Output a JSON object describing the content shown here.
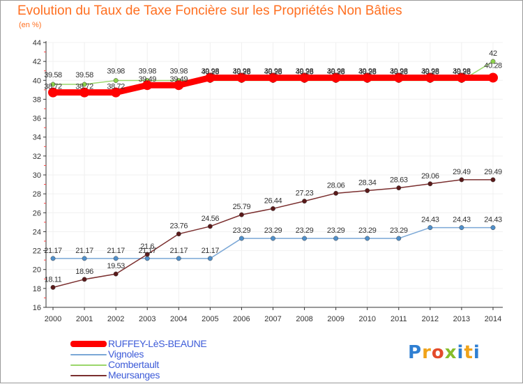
{
  "title": "Evolution du Taux de Taxe Foncière sur les Propriétés Non Bâties",
  "subtitle": "(en %)",
  "logo": {
    "text": "Proxiti"
  },
  "colors": {
    "title": "#ff6f20",
    "axis": "#333333",
    "grid": "#f0f0f0",
    "tick_red": "#ff4040",
    "legend_text": "#3d5bd8"
  },
  "chart_data": {
    "type": "line",
    "title": "Evolution du Taux de Taxe Foncière sur les Propriétés Non Bâties",
    "ylabel": "(en %)",
    "xlabel": "",
    "ylim": [
      16,
      44
    ],
    "yticks": [
      16,
      18,
      20,
      22,
      24,
      26,
      28,
      30,
      32,
      34,
      36,
      38,
      40,
      42,
      44
    ],
    "x": [
      2000,
      2001,
      2002,
      2003,
      2004,
      2005,
      2006,
      2007,
      2008,
      2009,
      2010,
      2011,
      2012,
      2013,
      2014
    ],
    "grid": true,
    "legend_position": "bottom-left",
    "series": [
      {
        "name": "RUFFEY-LèS-BEAUNE",
        "color": "#ff0000",
        "marker_color": "#ff0000",
        "style": "thick",
        "values": [
          38.72,
          38.72,
          38.72,
          39.49,
          39.49,
          40.28,
          40.28,
          40.28,
          40.28,
          40.28,
          40.28,
          40.28,
          40.28,
          40.28,
          40.28
        ],
        "labels": [
          "38.72",
          "38.72",
          "38.72",
          "39.49",
          "39.49",
          "40.28",
          "40.28",
          "40.28",
          "40.28",
          "40.28",
          "40.28",
          "40.28",
          "40.28",
          "40.28",
          "40.28"
        ]
      },
      {
        "name": "Vignoles",
        "color": "#7aa7d6",
        "marker_color": "#4f8fca",
        "style": "thin",
        "values": [
          21.17,
          21.17,
          21.17,
          21.17,
          21.17,
          21.17,
          23.29,
          23.29,
          23.29,
          23.29,
          23.29,
          23.29,
          24.43,
          24.43,
          24.43
        ],
        "labels": [
          "21.17",
          "21.17",
          "21.17",
          "21.17",
          "21.17",
          "21.17",
          "23.29",
          "23.29",
          "23.29",
          "23.29",
          "23.29",
          "23.29",
          "24.43",
          "24.43",
          "24.43"
        ]
      },
      {
        "name": "Combertault",
        "color": "#9ad66a",
        "marker_color": "#8cd24a",
        "style": "thin",
        "values": [
          39.58,
          39.58,
          39.98,
          39.98,
          39.98,
          39.98,
          39.98,
          39.98,
          39.98,
          39.98,
          39.98,
          39.98,
          39.98,
          39.98,
          42
        ],
        "labels": [
          "39.58",
          "39.58",
          "39.98",
          "39.98",
          "39.98",
          "39.98",
          "39.98",
          "39.98",
          "39.98",
          "39.98",
          "39.98",
          "39.98",
          "39.98",
          "39.98",
          "42"
        ]
      },
      {
        "name": "Meursanges",
        "color": "#7a2e2e",
        "marker_color": "#5a1a1a",
        "style": "thin",
        "values": [
          18.11,
          18.96,
          19.53,
          21.6,
          23.76,
          24.56,
          25.79,
          26.44,
          27.23,
          28.06,
          28.34,
          28.63,
          29.06,
          29.49,
          29.49
        ],
        "labels": [
          "18.11",
          "18.96",
          "19.53",
          "21.6",
          "23.76",
          "24.56",
          "25.79",
          "26.44",
          "27.23",
          "28.06",
          "28.34",
          "28.63",
          "29.06",
          "29.49",
          "29.49"
        ]
      }
    ]
  }
}
